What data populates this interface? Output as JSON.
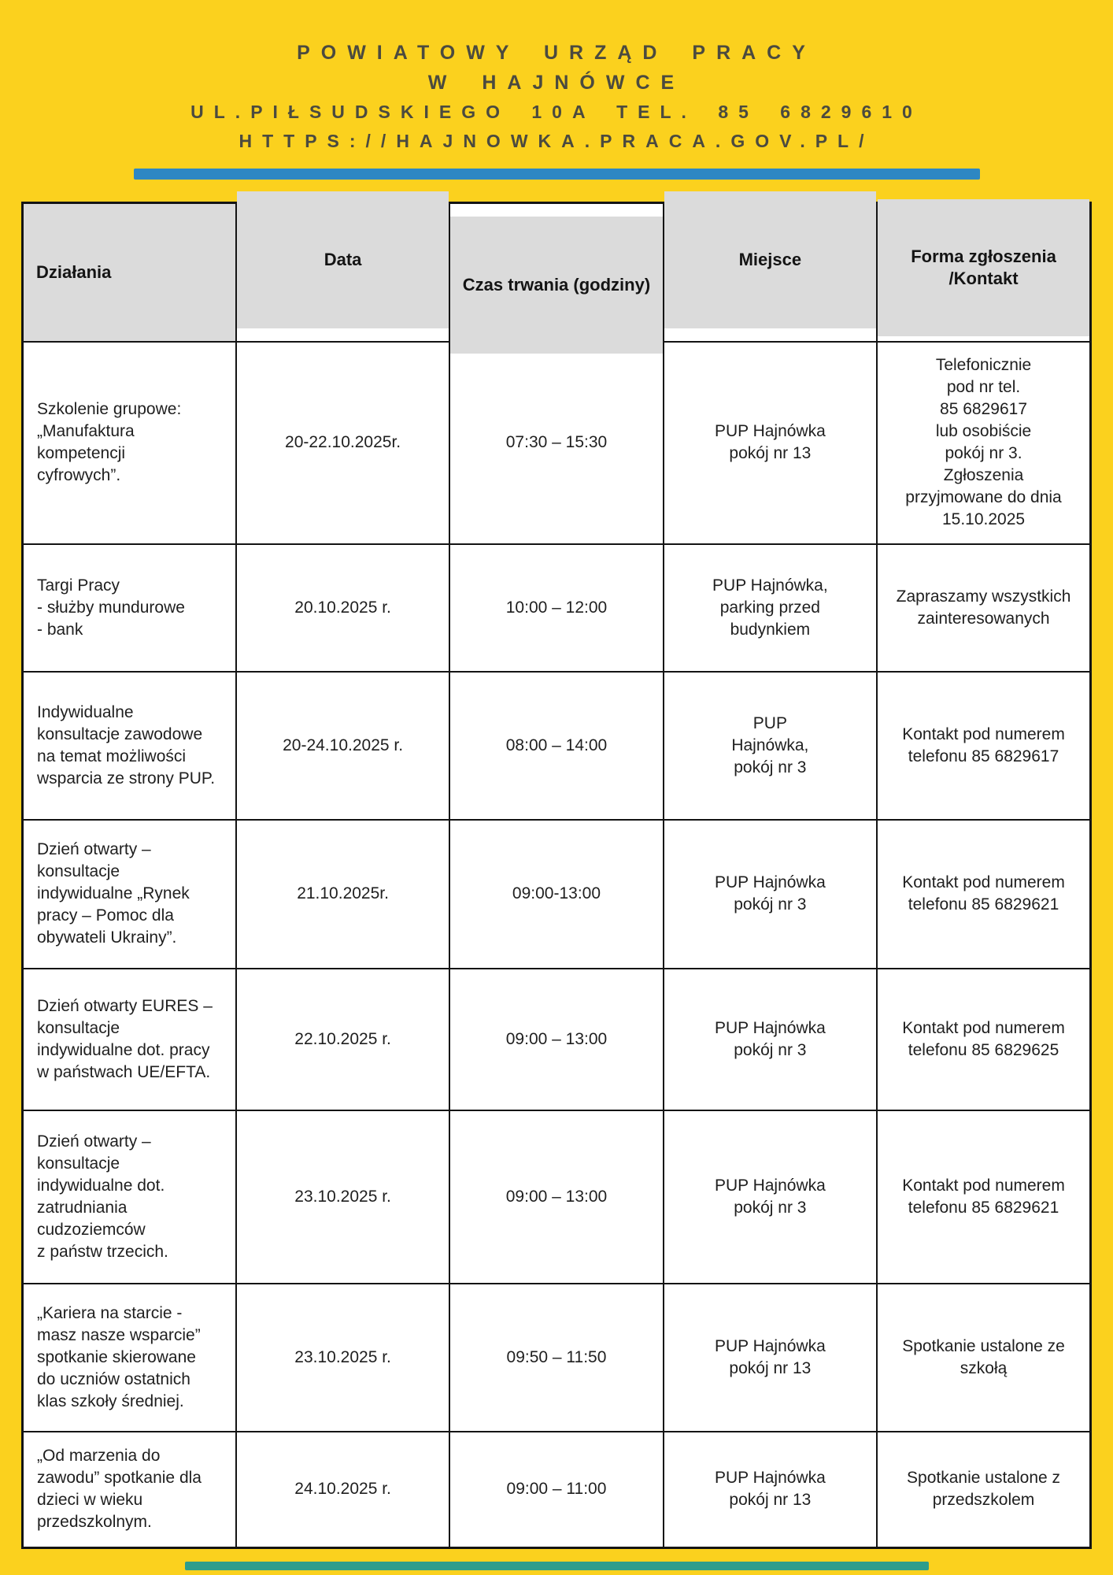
{
  "header": {
    "line1": "POWIATOWY URZĄD PRACY",
    "line2": "W HAJNÓWCE",
    "line3": "UL.PIŁSUDSKIEGO 10A TEL. 85 6829610",
    "line4": "HTTPS://HAJNOWKA.PRACA.GOV.PL/"
  },
  "colors": {
    "page_background": "#FBD11E",
    "header_text": "#4B4A3F",
    "top_divider": "#2D87C3",
    "bottom_divider": "#2E9D8C",
    "table_header_background": "#DBDBDB",
    "table_border": "#141414",
    "body_text": "#1F1F1F"
  },
  "table": {
    "columns": [
      "Działania",
      "Data",
      "Czas trwania (godziny)",
      "Miejsce",
      "Forma zgłoszenia\n/Kontakt"
    ],
    "rows": [
      {
        "dzialania": "Szkolenie grupowe:\n„Manufaktura\nkompetencji\ncyfrowych”.",
        "data": "20-22.10.2025r.",
        "czas": "07:30 – 15:30",
        "miejsce": "PUP Hajnówka\npokój nr 13",
        "forma": "Telefonicznie\npod nr tel.\n85 6829617\nlub osobiście\npokój nr 3.\nZgłoszenia\nprzyjmowane do dnia\n15.10.2025"
      },
      {
        "dzialania": "Targi Pracy\n- służby mundurowe\n- bank",
        "data": "20.10.2025 r.",
        "czas": "10:00 – 12:00",
        "miejsce": "PUP Hajnówka,\nparking przed\nbudynkiem",
        "forma": "Zapraszamy wszystkich\nzainteresowanych"
      },
      {
        "dzialania": "Indywidualne\nkonsultacje zawodowe\nna temat możliwości\nwsparcia ze strony PUP.",
        "data": "20-24.10.2025 r.",
        "czas": "08:00 – 14:00",
        "miejsce": "PUP\nHajnówka,\npokój nr 3",
        "forma": "Kontakt pod numerem\ntelefonu 85 6829617"
      },
      {
        "dzialania": "Dzień otwarty –\nkonsultacje\nindywidualne „Rynek\npracy – Pomoc dla\nobywateli Ukrainy”.",
        "data": "21.10.2025r.",
        "czas": "09:00-13:00",
        "miejsce": "PUP Hajnówka\npokój nr 3",
        "forma": "Kontakt pod numerem\ntelefonu 85 6829621"
      },
      {
        "dzialania": "Dzień otwarty EURES –\nkonsultacje\nindywidualne dot. pracy\nw państwach UE/EFTA.",
        "data": "22.10.2025 r.",
        "czas": "09:00 – 13:00",
        "miejsce": "PUP Hajnówka\npokój nr 3",
        "forma": "Kontakt pod numerem\ntelefonu 85 6829625"
      },
      {
        "dzialania": "Dzień otwarty –\nkonsultacje\nindywidualne dot.\nzatrudniania\ncudzoziemców\nz państw trzecich.",
        "data": "23.10.2025 r.",
        "czas": "09:00 – 13:00",
        "miejsce": "PUP Hajnówka\npokój nr 3",
        "forma": "Kontakt pod numerem\ntelefonu 85 6829621"
      },
      {
        "dzialania": "„Kariera na starcie -\nmasz nasze wsparcie”\nspotkanie skierowane\ndo uczniów ostatnich\nklas szkoły średniej.",
        "data": "23.10.2025 r.",
        "czas": "09:50 – 11:50",
        "miejsce": "PUP Hajnówka\npokój nr 13",
        "forma": "Spotkanie ustalone ze\nszkołą"
      },
      {
        "dzialania": "„Od marzenia do\nzawodu” spotkanie dla\ndzieci w wieku\nprzedszkolnym.",
        "data": "24.10.2025 r.",
        "czas": "09:00 – 11:00",
        "miejsce": "PUP Hajnówka\npokój nr 13",
        "forma": "Spotkanie ustalone z\nprzedszkolem"
      }
    ]
  }
}
